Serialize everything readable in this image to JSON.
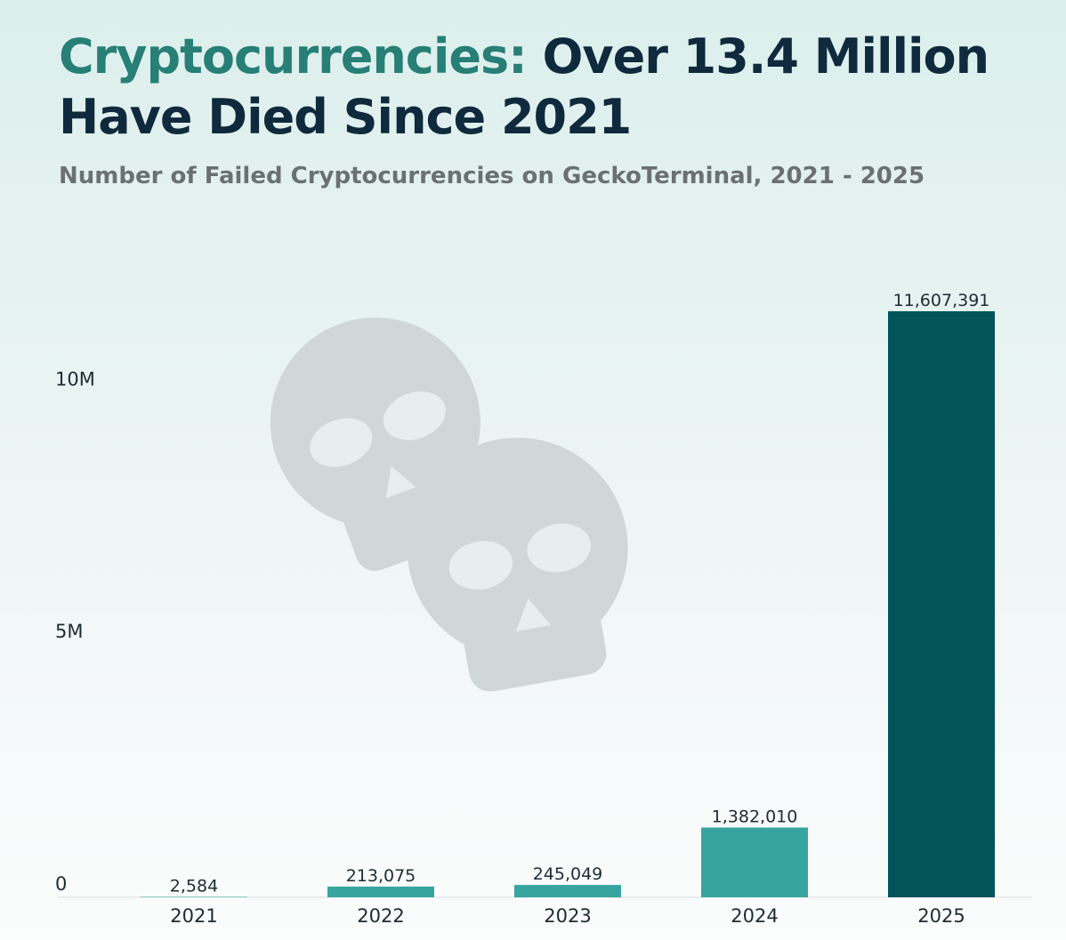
{
  "header": {
    "title_accent": "Cryptocurrencies:",
    "title_rest": "Over 13.4 Million Have Died Since 2021",
    "subtitle": "Number of Failed Cryptocurrencies on GeckoTerminal, 2021 - 2025"
  },
  "icons": {
    "watermark": "skull-icon"
  },
  "colors": {
    "title_accent": "#277f76",
    "title_main": "#0f2a3d",
    "bar_teal": "#37a59e",
    "bar_dark": "#03545a",
    "watermark": "#cfd7d7"
  },
  "chart_data": {
    "type": "bar",
    "title": "Cryptocurrencies: Over 13.4 Million Have Died Since 2021",
    "subtitle": "Number of Failed Cryptocurrencies on GeckoTerminal, 2021 - 2025",
    "categories": [
      "2021",
      "2022",
      "2023",
      "2024",
      "2025"
    ],
    "values": [
      2584,
      213075,
      245049,
      1382010,
      11607391
    ],
    "value_labels": [
      "2,584",
      "213,075",
      "245,049",
      "1,382,010",
      "11,607,391"
    ],
    "bar_colors": [
      "#37a59e",
      "#37a59e",
      "#37a59e",
      "#37a59e",
      "#03545a"
    ],
    "yticks": [
      0,
      5000000,
      10000000
    ],
    "ytick_labels": [
      "0",
      "5M",
      "10M"
    ],
    "ylim": [
      0,
      11607391
    ],
    "xlabel": "",
    "ylabel": "",
    "grid": false,
    "legend": "none"
  }
}
